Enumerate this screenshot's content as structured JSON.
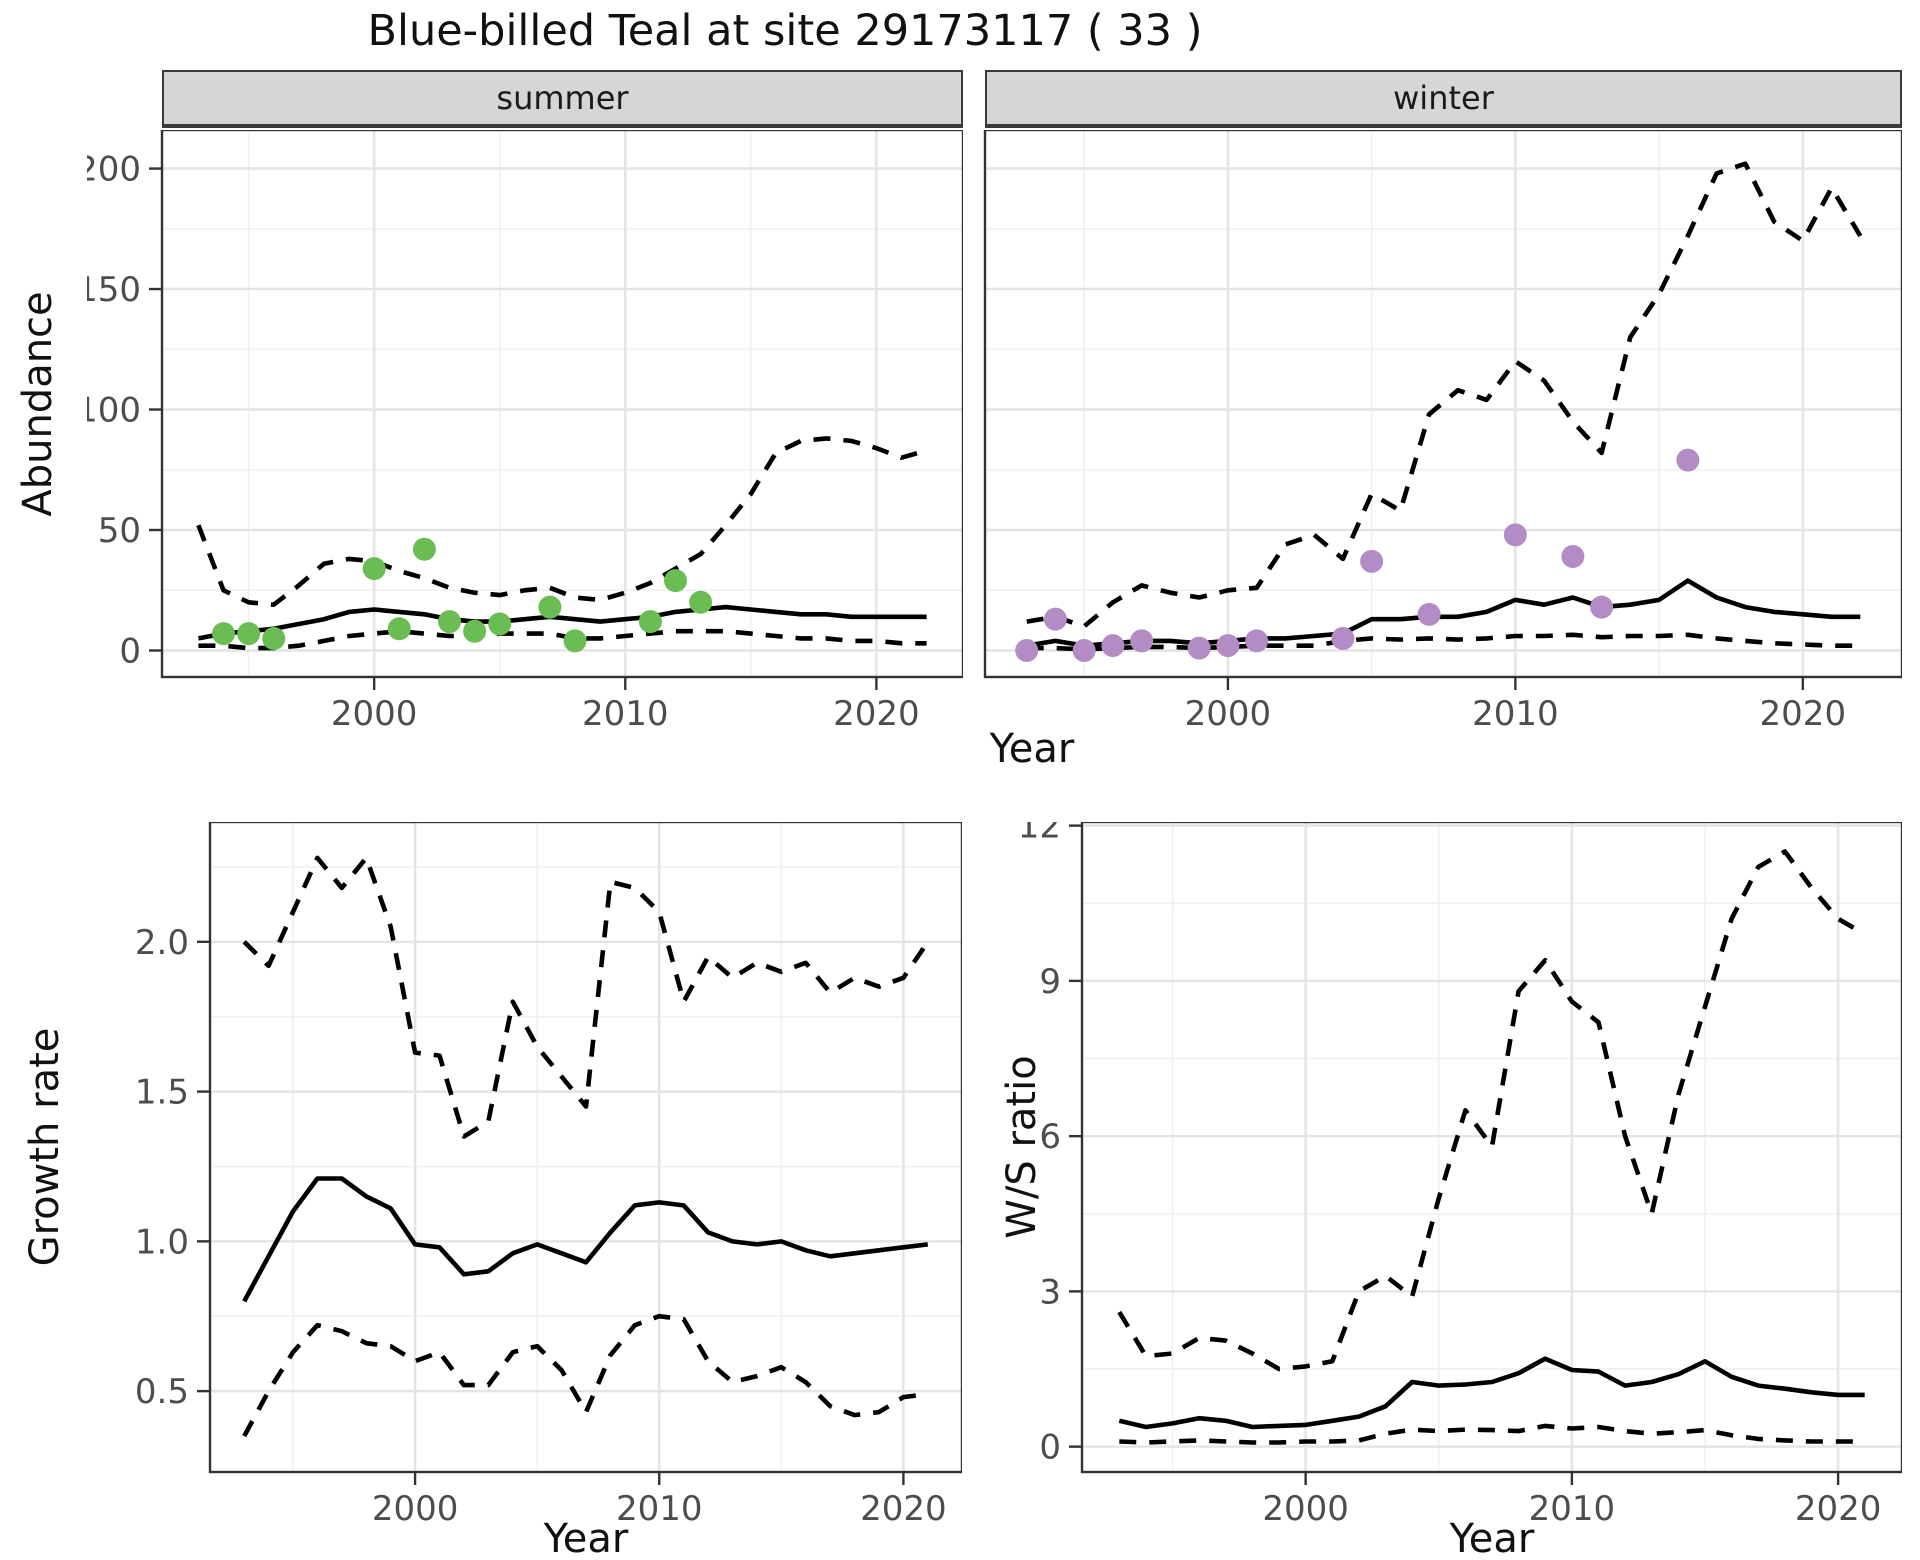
{
  "title": "Blue-billed Teal at site 29173117 ( 33 )",
  "facets": {
    "summer_label": "summer",
    "winter_label": "winter"
  },
  "axis_titles": {
    "abundance": "Abundance",
    "growth": "Growth rate",
    "ws": "W/S ratio",
    "year": "Year"
  },
  "colors": {
    "summer_point": "#6abd52",
    "winter_point": "#b38cc5",
    "line": "#000000",
    "grid_major": "#e4e4e4",
    "grid_minor": "#f1f1f1",
    "strip_bg": "#d6d6d6",
    "panel_border": "#333333",
    "tick_text": "#4d4d4d",
    "panel_bg": "#ffffff"
  },
  "chart_data": [
    {
      "id": "abundance-summer",
      "type": "line",
      "facet": "summer",
      "title": "Blue-billed Teal at site 29173117 ( 33 )",
      "xlabel": "Year",
      "ylabel": "Abundance",
      "xlim": [
        1991.55,
        2023.45
      ],
      "ylim": [
        -11,
        216
      ],
      "grid": true,
      "x_ticks": {
        "values": [
          2000,
          2010,
          2020
        ],
        "labels": [
          "2000",
          "2010",
          "2020"
        ],
        "minor": [
          1995,
          2005,
          2015
        ]
      },
      "y_ticks": {
        "values": [
          0,
          50,
          100,
          150,
          200
        ],
        "labels": [
          "0",
          "50",
          "100",
          "150",
          "200"
        ],
        "minor": [
          25,
          75,
          125,
          175
        ]
      },
      "years": [
        1993,
        1994,
        1995,
        1996,
        1997,
        1998,
        1999,
        2000,
        2001,
        2002,
        2003,
        2004,
        2005,
        2006,
        2007,
        2008,
        2009,
        2010,
        2011,
        2012,
        2013,
        2014,
        2015,
        2016,
        2017,
        2018,
        2019,
        2020,
        2021,
        2022
      ],
      "series": [
        {
          "name": "upper-95-ci",
          "style": "dashed",
          "values": [
            52,
            25,
            20,
            19,
            27,
            36,
            38,
            37,
            33,
            30,
            26,
            24,
            23,
            25,
            26,
            22,
            21,
            24,
            28,
            34,
            40,
            52,
            65,
            82,
            87,
            88,
            87,
            84,
            80,
            83
          ]
        },
        {
          "name": "median",
          "style": "solid",
          "values": [
            5,
            7,
            8,
            9,
            11,
            13,
            16,
            17,
            16,
            15,
            13,
            12,
            12,
            13,
            14,
            13,
            12,
            13,
            14,
            16,
            17,
            18,
            17,
            16,
            15,
            15,
            14,
            14,
            14,
            14
          ]
        },
        {
          "name": "lower-95-ci",
          "style": "dashed",
          "values": [
            2,
            2,
            1,
            1,
            2,
            4,
            6,
            7,
            8,
            7,
            6,
            6,
            7,
            7,
            7,
            5,
            5,
            6,
            7,
            8,
            8,
            8,
            7,
            6,
            5,
            5,
            4,
            4,
            3,
            3
          ]
        }
      ],
      "points": {
        "name": "observed-counts-summer",
        "color_key": "summer_point",
        "data": [
          [
            1994,
            7
          ],
          [
            1995,
            7
          ],
          [
            1996,
            5
          ],
          [
            2000,
            34
          ],
          [
            2001,
            9
          ],
          [
            2002,
            42
          ],
          [
            2003,
            12
          ],
          [
            2004,
            8
          ],
          [
            2005,
            11
          ],
          [
            2007,
            18
          ],
          [
            2008,
            4
          ],
          [
            2011,
            12
          ],
          [
            2012,
            29
          ],
          [
            2013,
            20
          ]
        ]
      }
    },
    {
      "id": "abundance-winter",
      "type": "line",
      "facet": "winter",
      "xlabel": "Year",
      "ylabel": "Abundance",
      "xlim": [
        1991.55,
        2023.45
      ],
      "ylim": [
        -11,
        216
      ],
      "grid": true,
      "x_ticks": {
        "values": [
          2000,
          2010,
          2020
        ],
        "labels": [
          "2000",
          "2010",
          "2020"
        ],
        "minor": [
          1995,
          2005,
          2015
        ]
      },
      "y_ticks": {
        "values": [
          0,
          50,
          100,
          150,
          200
        ],
        "labels": [
          "0",
          "50",
          "100",
          "150",
          "200"
        ],
        "minor": [
          25,
          75,
          125,
          175
        ]
      },
      "years": [
        1993,
        1994,
        1995,
        1996,
        1997,
        1998,
        1999,
        2000,
        2001,
        2002,
        2003,
        2004,
        2005,
        2006,
        2007,
        2008,
        2009,
        2010,
        2011,
        2012,
        2013,
        2014,
        2015,
        2016,
        2017,
        2018,
        2019,
        2020,
        2021,
        2022
      ],
      "series": [
        {
          "name": "upper-95-ci",
          "style": "dashed",
          "values": [
            12,
            14,
            10,
            20,
            27,
            24,
            22,
            25,
            26,
            44,
            48,
            38,
            65,
            58,
            98,
            108,
            104,
            120,
            112,
            95,
            82,
            130,
            148,
            172,
            198,
            202,
            178,
            170,
            192,
            172
          ]
        },
        {
          "name": "median",
          "style": "solid",
          "values": [
            2,
            4,
            2,
            3,
            4,
            4,
            3,
            4,
            5,
            5,
            6,
            7,
            13,
            13,
            14,
            14,
            16,
            21,
            19,
            22,
            18,
            19,
            21,
            29,
            22,
            18,
            16,
            15,
            14,
            14
          ]
        },
        {
          "name": "lower-95-ci",
          "style": "dashed",
          "values": [
            1,
            1,
            0.5,
            1,
            1.5,
            1.5,
            1,
            1.5,
            2,
            2,
            2,
            4,
            5,
            4.5,
            5,
            4.5,
            5,
            6,
            6,
            6.5,
            5.5,
            6,
            6,
            6.5,
            5,
            4,
            3,
            2.5,
            2,
            2
          ]
        }
      ],
      "points": {
        "name": "observed-counts-winter",
        "color_key": "winter_point",
        "data": [
          [
            1993,
            0
          ],
          [
            1994,
            13
          ],
          [
            1995,
            0
          ],
          [
            1996,
            2
          ],
          [
            1997,
            4
          ],
          [
            1999,
            1
          ],
          [
            2000,
            2
          ],
          [
            2001,
            4
          ],
          [
            2004,
            5
          ],
          [
            2005,
            37
          ],
          [
            2007,
            15
          ],
          [
            2010,
            48
          ],
          [
            2012,
            39
          ],
          [
            2013,
            18
          ],
          [
            2016,
            79
          ]
        ]
      }
    },
    {
      "id": "growth-rate",
      "type": "line",
      "xlabel": "Year",
      "ylabel": "Growth rate",
      "xlim": [
        1991.6,
        2022.4
      ],
      "ylim": [
        0.23,
        2.4
      ],
      "grid": true,
      "x_ticks": {
        "values": [
          2000,
          2010,
          2020
        ],
        "labels": [
          "2000",
          "2010",
          "2020"
        ],
        "minor": [
          1995,
          2005,
          2015
        ]
      },
      "y_ticks": {
        "values": [
          0.5,
          1.0,
          1.5,
          2.0
        ],
        "labels": [
          "0.5",
          "1.0",
          "1.5",
          "2.0"
        ],
        "minor": [
          0.75,
          1.25,
          1.75,
          2.25
        ]
      },
      "years": [
        1993,
        1994,
        1995,
        1996,
        1997,
        1998,
        1999,
        2000,
        2001,
        2002,
        2003,
        2004,
        2005,
        2006,
        2007,
        2008,
        2009,
        2010,
        2011,
        2012,
        2013,
        2014,
        2015,
        2016,
        2017,
        2018,
        2019,
        2020,
        2021
      ],
      "series": [
        {
          "name": "upper-95-ci",
          "style": "dashed",
          "values": [
            2.0,
            1.92,
            2.1,
            2.28,
            2.18,
            2.28,
            2.05,
            1.63,
            1.62,
            1.35,
            1.4,
            1.8,
            1.65,
            1.55,
            1.45,
            2.2,
            2.18,
            2.1,
            1.8,
            1.95,
            1.88,
            1.93,
            1.9,
            1.93,
            1.83,
            1.88,
            1.85,
            1.88,
            2.0
          ]
        },
        {
          "name": "median",
          "style": "solid",
          "values": [
            0.8,
            0.95,
            1.1,
            1.21,
            1.21,
            1.15,
            1.11,
            0.99,
            0.98,
            0.89,
            0.9,
            0.96,
            0.99,
            0.96,
            0.93,
            1.03,
            1.12,
            1.13,
            1.12,
            1.03,
            1.0,
            0.99,
            1.0,
            0.97,
            0.95,
            0.96,
            0.97,
            0.98,
            0.99
          ]
        },
        {
          "name": "lower-95-ci",
          "style": "dashed",
          "values": [
            0.35,
            0.5,
            0.63,
            0.72,
            0.7,
            0.66,
            0.65,
            0.6,
            0.63,
            0.52,
            0.52,
            0.63,
            0.65,
            0.57,
            0.43,
            0.62,
            0.72,
            0.75,
            0.74,
            0.6,
            0.53,
            0.55,
            0.58,
            0.53,
            0.45,
            0.42,
            0.43,
            0.48,
            0.49
          ]
        }
      ]
    },
    {
      "id": "ws-ratio",
      "type": "line",
      "xlabel": "Year",
      "ylabel": "W/S ratio",
      "xlim": [
        1991.6,
        2022.4
      ],
      "ylim": [
        -0.49,
        12.07
      ],
      "grid": true,
      "x_ticks": {
        "values": [
          2000,
          2010,
          2020
        ],
        "labels": [
          "2000",
          "2010",
          "2020"
        ],
        "minor": [
          1995,
          2005,
          2015
        ]
      },
      "y_ticks": {
        "values": [
          0,
          3,
          6,
          9,
          12
        ],
        "labels": [
          "0",
          "3",
          "6",
          "9",
          "12"
        ],
        "minor": [
          1.5,
          4.5,
          7.5,
          10.5
        ]
      },
      "years": [
        1993,
        1994,
        1995,
        1996,
        1997,
        1998,
        1999,
        2000,
        2001,
        2002,
        2003,
        2004,
        2005,
        2006,
        2007,
        2008,
        2009,
        2010,
        2011,
        2012,
        2013,
        2014,
        2015,
        2016,
        2017,
        2018,
        2019,
        2020,
        2021
      ],
      "series": [
        {
          "name": "upper-95-ci",
          "style": "dashed",
          "values": [
            2.6,
            1.75,
            1.8,
            2.1,
            2.05,
            1.8,
            1.5,
            1.55,
            1.65,
            3.0,
            3.3,
            2.9,
            4.8,
            6.5,
            5.8,
            8.8,
            9.4,
            8.6,
            8.2,
            6.0,
            4.5,
            6.8,
            8.5,
            10.2,
            11.2,
            11.5,
            10.8,
            10.2,
            9.9
          ]
        },
        {
          "name": "median",
          "style": "solid",
          "values": [
            0.5,
            0.38,
            0.45,
            0.55,
            0.5,
            0.38,
            0.4,
            0.42,
            0.5,
            0.58,
            0.78,
            1.25,
            1.18,
            1.2,
            1.25,
            1.42,
            1.7,
            1.48,
            1.45,
            1.18,
            1.25,
            1.4,
            1.65,
            1.35,
            1.18,
            1.12,
            1.05,
            1.0,
            1.0
          ]
        },
        {
          "name": "lower-95-ci",
          "style": "dashed",
          "values": [
            0.1,
            0.08,
            0.1,
            0.12,
            0.1,
            0.08,
            0.08,
            0.1,
            0.1,
            0.12,
            0.25,
            0.33,
            0.3,
            0.33,
            0.32,
            0.3,
            0.4,
            0.35,
            0.38,
            0.3,
            0.25,
            0.28,
            0.32,
            0.22,
            0.15,
            0.12,
            0.1,
            0.1,
            0.1
          ]
        }
      ]
    }
  ]
}
